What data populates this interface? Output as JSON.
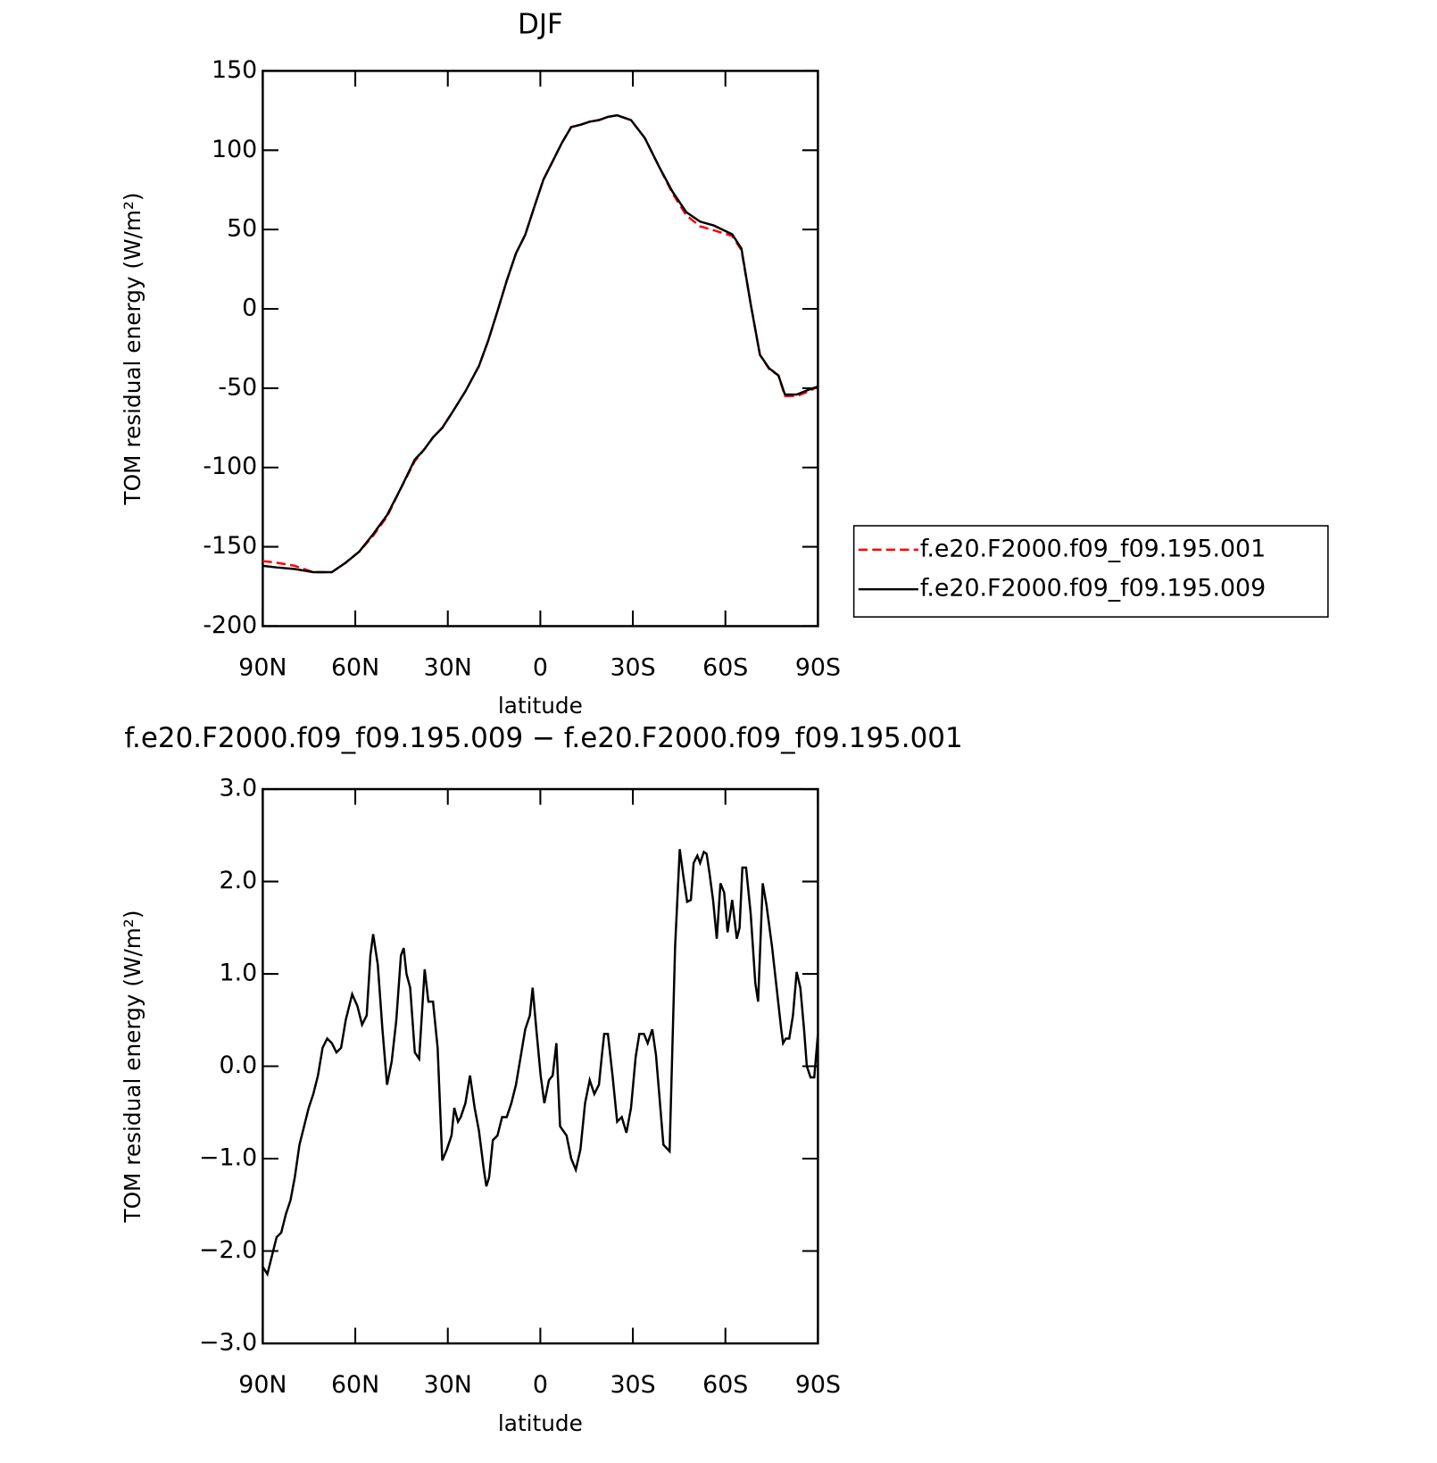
{
  "chart_data": [
    {
      "type": "line",
      "title": "DJF",
      "xlabel": "latitude",
      "ylabel": "TOM residual energy (W/m²)",
      "xlim": [
        90,
        -90
      ],
      "xticks": [
        {
          "value": 90,
          "label": "90N"
        },
        {
          "value": 60,
          "label": "60N"
        },
        {
          "value": 30,
          "label": "30N"
        },
        0,
        {
          "value": -30,
          "label": "30S"
        },
        {
          "value": -60,
          "label": "60S"
        },
        {
          "value": -90,
          "label": "90S"
        }
      ],
      "ylim": [
        -200,
        150
      ],
      "yticks": [
        -200,
        -150,
        -100,
        -50,
        0,
        50,
        100,
        150
      ],
      "legend": "right",
      "x": [
        90,
        85.5,
        79.6,
        73.6,
        67.6,
        63.1,
        58.7,
        54.2,
        49.7,
        45.2,
        40.7,
        37.8,
        34.8,
        31.8,
        28.8,
        24.3,
        19.9,
        16.9,
        13.9,
        10.9,
        7.9,
        4.9,
        2.0,
        -1.0,
        -4.0,
        -7.0,
        -10.0,
        -13.0,
        -16.0,
        -19.0,
        -21.9,
        -24.9,
        -29.4,
        -33.9,
        -38.4,
        -42.8,
        -47.3,
        -51.8,
        -56.3,
        -62.2,
        -65.2,
        -68.2,
        -71.2,
        -74.2,
        -77.2,
        -79.3,
        -83.1,
        -87.0,
        -90
      ],
      "series": [
        {
          "name": "f.e20.F2000.f09_f09.195.001",
          "color": "#ff0000",
          "linestyle": "dashed",
          "values": [
            -159,
            -160,
            -162,
            -166,
            -166,
            -160,
            -153,
            -143,
            -131,
            -113,
            -96,
            -89,
            -81,
            -75,
            -66,
            -52,
            -36,
            -20,
            -1.5,
            17.7,
            35,
            46.7,
            64,
            81.5,
            93,
            104.7,
            114.6,
            116,
            118,
            119,
            121,
            122,
            119,
            107.6,
            90,
            73,
            59,
            52,
            49.5,
            46,
            37,
            3,
            -29,
            -38,
            -42,
            -55,
            -55,
            -52,
            -49
          ]
        },
        {
          "name": "f.e20.F2000.f09_f09.195.009",
          "color": "#000000",
          "linestyle": "solid",
          "values": [
            -162,
            -163,
            -164,
            -166,
            -166,
            -160,
            -153,
            -142,
            -130,
            -113,
            -95,
            -89,
            -81,
            -75,
            -66,
            -52,
            -36,
            -20,
            -1.5,
            17.7,
            35,
            46.7,
            64,
            81.5,
            93,
            104.7,
            114.6,
            116,
            118,
            119,
            121,
            122,
            119,
            107.6,
            90,
            74,
            61,
            55,
            52.5,
            47,
            38,
            3,
            -29,
            -37.5,
            -42,
            -54,
            -54,
            -51,
            -49
          ]
        }
      ]
    },
    {
      "type": "line",
      "title": "f.e20.F2000.f09_f09.195.009 − f.e20.F2000.f09_f09.195.001",
      "xlabel": "latitude",
      "ylabel": "TOM residual energy (W/m²)",
      "xlim": [
        90,
        -90
      ],
      "xticks": [
        {
          "value": 90,
          "label": "90N"
        },
        {
          "value": 60,
          "label": "60N"
        },
        {
          "value": 30,
          "label": "30N"
        },
        0,
        {
          "value": -30,
          "label": "30S"
        },
        {
          "value": -60,
          "label": "60S"
        },
        {
          "value": -90,
          "label": "90S"
        }
      ],
      "ylim": [
        -3,
        3
      ],
      "yticks": [
        {
          "value": -3,
          "label": "−3.0"
        },
        {
          "value": -2,
          "label": "−2.0"
        },
        {
          "value": -1,
          "label": "−1.0"
        },
        {
          "value": 0,
          "label": "0.0"
        },
        {
          "value": 1,
          "label": "1.0"
        },
        {
          "value": 2,
          "label": "2.0"
        },
        {
          "value": 3,
          "label": "3.0"
        }
      ],
      "color": "#000000",
      "x": [
        90,
        88.5,
        87,
        85.5,
        84,
        82.5,
        81,
        79.6,
        78.1,
        76.6,
        75.1,
        73.6,
        72.1,
        70.6,
        69.1,
        67.6,
        66.1,
        64.6,
        63.1,
        61,
        59.3,
        57.8,
        56.3,
        55.1,
        54.2,
        52.7,
        51.2,
        49.7,
        48.2,
        46.7,
        45.2,
        44.3,
        43.4,
        42.2,
        40.7,
        39.3,
        37.5,
        36.3,
        34.8,
        33.3,
        31.8,
        30.3,
        28.8,
        27.9,
        26.7,
        25.8,
        24.3,
        22.8,
        21.3,
        19.9,
        18.4,
        17.5,
        16.6,
        15.4,
        13.9,
        12.4,
        10.9,
        9.4,
        7.9,
        6.4,
        4.9,
        3.4,
        2.5,
        1.3,
        -0.1,
        -1.3,
        -2.8,
        -4,
        -5.2,
        -6.4,
        -8.5,
        -10,
        -11.5,
        -13,
        -14.5,
        -16,
        -17.5,
        -19,
        -19.9,
        -20.7,
        -21.9,
        -23.4,
        -24.9,
        -26.4,
        -27.9,
        -29.4,
        -30.9,
        -32.1,
        -33.6,
        -34.8,
        -36.3,
        -37.5,
        -39.9,
        -41.9,
        -43.7,
        -45.2,
        -46.4,
        -47.6,
        -48.8,
        -49.7,
        -50.9,
        -51.8,
        -53,
        -53.9,
        -54.8,
        -56,
        -57.2,
        -58.4,
        -59.6,
        -60.7,
        -62.2,
        -63.7,
        -64.6,
        -65.5,
        -66.7,
        -68.2,
        -69.7,
        -70.6,
        -72.1,
        -73.3,
        -75.1,
        -76.6,
        -78.1,
        -78.7,
        -79.6,
        -80.7,
        -81.9,
        -83.1,
        -84.3,
        -85.5,
        -86.4,
        -87.6,
        -88.8,
        -90
      ],
      "values": [
        -2.17,
        -2.25,
        -2.05,
        -1.85,
        -1.8,
        -1.6,
        -1.45,
        -1.2,
        -0.85,
        -0.65,
        -0.45,
        -0.3,
        -0.1,
        0.2,
        0.3,
        0.25,
        0.15,
        0.2,
        0.5,
        0.78,
        0.65,
        0.45,
        0.55,
        1.2,
        1.43,
        1.1,
        0.4,
        -0.2,
        0.05,
        0.5,
        1.2,
        1.28,
        1.0,
        0.85,
        0.15,
        0.08,
        1.05,
        0.7,
        0.7,
        0.2,
        -1.02,
        -0.9,
        -0.75,
        -0.45,
        -0.6,
        -0.55,
        -0.4,
        -0.1,
        -0.45,
        -0.7,
        -1.1,
        -1.3,
        -1.2,
        -0.8,
        -0.75,
        -0.55,
        -0.55,
        -0.4,
        -0.2,
        0.1,
        0.4,
        0.55,
        0.85,
        0.4,
        -0.1,
        -0.4,
        -0.15,
        -0.1,
        0.25,
        -0.65,
        -0.75,
        -1.0,
        -1.12,
        -0.9,
        -0.4,
        -0.15,
        -0.3,
        -0.2,
        0.1,
        0.35,
        0.35,
        -0.1,
        -0.6,
        -0.55,
        -0.72,
        -0.45,
        0.1,
        0.35,
        0.35,
        0.25,
        0.4,
        0.12,
        -0.85,
        -0.92,
        1.3,
        2.35,
        2.05,
        1.78,
        1.8,
        2.2,
        2.28,
        2.2,
        2.32,
        2.3,
        2.1,
        1.8,
        1.38,
        1.98,
        1.88,
        1.45,
        1.8,
        1.38,
        1.5,
        2.15,
        2.15,
        1.65,
        0.9,
        0.7,
        1.98,
        1.75,
        1.3,
        0.85,
        0.4,
        0.25,
        0.3,
        0.3,
        0.55,
        1.02,
        0.85,
        0.4,
        0.0,
        -0.12,
        -0.12,
        0.35
      ]
    }
  ]
}
